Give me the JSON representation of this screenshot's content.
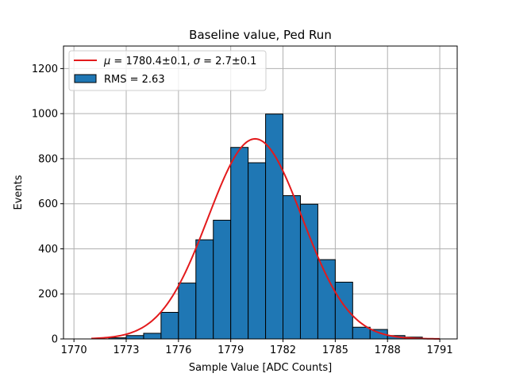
{
  "chart_data": {
    "type": "bar",
    "title": "Baseline value, Ped Run",
    "xlabel": "Sample Value [ADC Counts]",
    "ylabel": "Events",
    "xlim": [
      1769.4,
      1792.0
    ],
    "ylim": [
      0,
      1300
    ],
    "xticks": [
      1770,
      1773,
      1776,
      1779,
      1782,
      1785,
      1788,
      1791
    ],
    "yticks": [
      0,
      200,
      400,
      600,
      800,
      1000,
      1200
    ],
    "grid": true,
    "legend_position": "top-left",
    "bar_color": "#1f77b4",
    "bar_edge_color": "#000000",
    "fit_color": "#e31a1c",
    "bins": [
      {
        "x0": 1772.0,
        "x1": 1773.0,
        "count": 5
      },
      {
        "x0": 1773.0,
        "x1": 1774.0,
        "count": 15
      },
      {
        "x0": 1774.0,
        "x1": 1775.0,
        "count": 25
      },
      {
        "x0": 1775.0,
        "x1": 1776.0,
        "count": 118
      },
      {
        "x0": 1776.0,
        "x1": 1777.0,
        "count": 248
      },
      {
        "x0": 1777.0,
        "x1": 1778.0,
        "count": 440
      },
      {
        "x0": 1778.0,
        "x1": 1779.0,
        "count": 527
      },
      {
        "x0": 1779.0,
        "x1": 1780.0,
        "count": 850
      },
      {
        "x0": 1780.0,
        "x1": 1781.0,
        "count": 782
      },
      {
        "x0": 1781.0,
        "x1": 1782.0,
        "count": 998
      },
      {
        "x0": 1782.0,
        "x1": 1783.0,
        "count": 636
      },
      {
        "x0": 1783.0,
        "x1": 1784.0,
        "count": 598
      },
      {
        "x0": 1784.0,
        "x1": 1785.0,
        "count": 352
      },
      {
        "x0": 1785.0,
        "x1": 1786.0,
        "count": 252
      },
      {
        "x0": 1786.0,
        "x1": 1787.0,
        "count": 52
      },
      {
        "x0": 1787.0,
        "x1": 1788.0,
        "count": 42
      },
      {
        "x0": 1788.0,
        "x1": 1789.0,
        "count": 15
      },
      {
        "x0": 1789.0,
        "x1": 1790.0,
        "count": 8
      }
    ],
    "fit": {
      "mu": 1780.4,
      "sigma": 2.7,
      "amplitude": 888,
      "x_range": [
        1771.0,
        1791.0
      ]
    },
    "legend": {
      "fit_label_mu": "μ",
      "fit_label_mu_value": " = 1780.4±0.1, ",
      "fit_label_sigma": "σ",
      "fit_label_sigma_value": " = 2.7±0.1",
      "hist_label": "RMS = 2.63"
    }
  }
}
